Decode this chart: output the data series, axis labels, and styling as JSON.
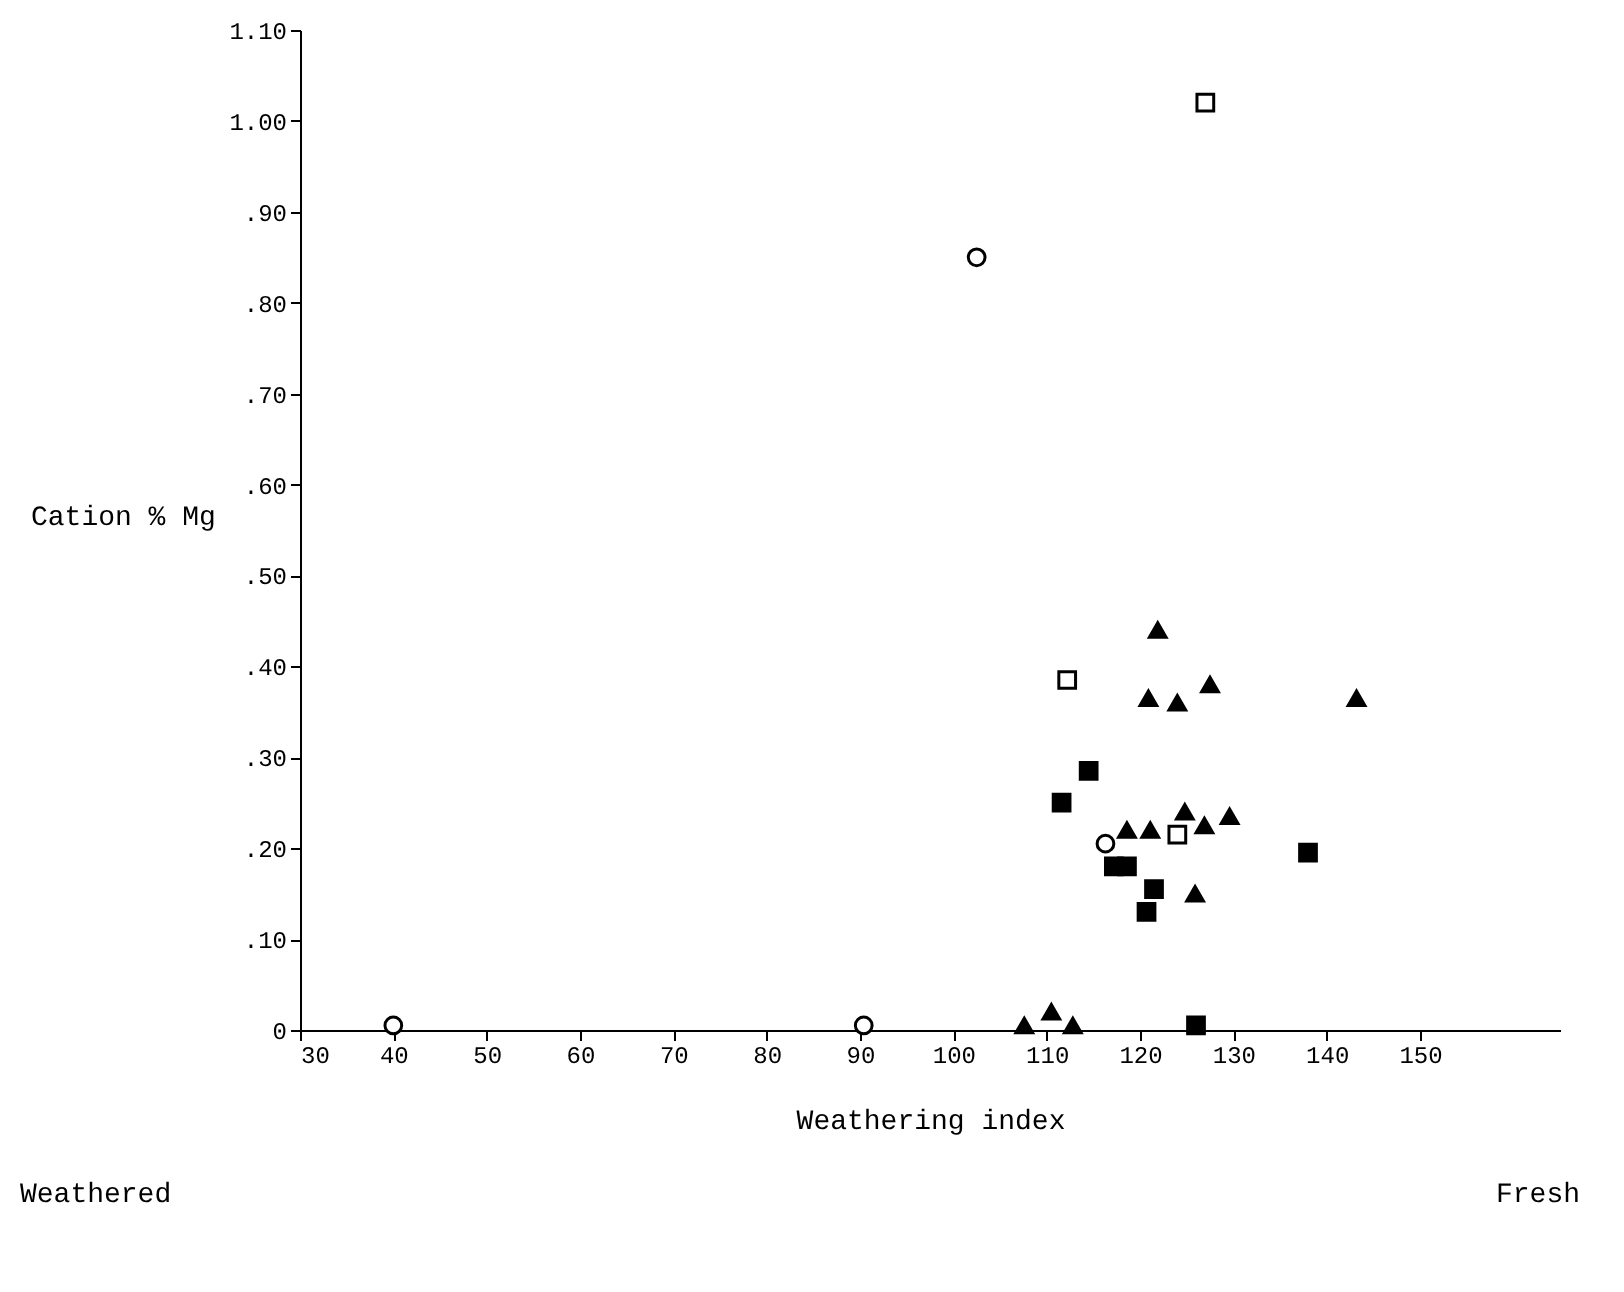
{
  "chart_data": {
    "type": "scatter",
    "xlabel": "Weathering index",
    "ylabel": "Cation % Mg",
    "annotations": [
      "Weathered",
      "Fresh"
    ],
    "xlim": [
      30,
      165
    ],
    "xticks": [
      30,
      40,
      50,
      60,
      70,
      80,
      90,
      100,
      110,
      120,
      130,
      140,
      150
    ],
    "ylim": [
      0,
      1.1
    ],
    "yticks": [
      {
        "value": 0,
        "label": "0"
      },
      {
        "value": 0.1,
        "label": ".10"
      },
      {
        "value": 0.2,
        "label": ".20"
      },
      {
        "value": 0.3,
        "label": ".30"
      },
      {
        "value": 0.4,
        "label": ".40"
      },
      {
        "value": 0.5,
        "label": ".50"
      },
      {
        "value": 0.6,
        "label": ".60"
      },
      {
        "value": 0.7,
        "label": ".70"
      },
      {
        "value": 0.8,
        "label": ".80"
      },
      {
        "value": 0.9,
        "label": ".90"
      },
      {
        "value": 1.0,
        "label": "1.00"
      },
      {
        "value": 1.1,
        "label": "1.10"
      }
    ],
    "grid": false,
    "series": [
      {
        "color": "#ffffff",
        "marker": "circle",
        "x": [
          40,
          90.4,
          102.5,
          116.3
        ],
        "values": [
          0.005,
          0.005,
          0.85,
          0.205
        ]
      },
      {
        "color": "#ffffff",
        "marker": "square",
        "x": [
          127,
          112.2,
          124
        ],
        "values": [
          1.02,
          0.385,
          0.215
        ]
      },
      {
        "color": "#000000",
        "marker": "square",
        "x": [
          114.5,
          111.6,
          117.2,
          118.6,
          121.5,
          120.7,
          138,
          126
        ],
        "values": [
          0.285,
          0.25,
          0.18,
          0.18,
          0.155,
          0.13,
          0.195,
          0.005
        ]
      },
      {
        "color": "#000000",
        "marker": "triangle",
        "x": [
          107.6,
          110.5,
          112.8,
          121.9,
          127.5,
          120.9,
          124,
          143.2,
          124.8,
          118.6,
          121.1,
          126.9,
          129.6,
          125.9
        ],
        "values": [
          0.005,
          0.02,
          0.005,
          0.44,
          0.38,
          0.365,
          0.36,
          0.365,
          0.24,
          0.22,
          0.22,
          0.225,
          0.235,
          0.15
        ]
      }
    ]
  }
}
